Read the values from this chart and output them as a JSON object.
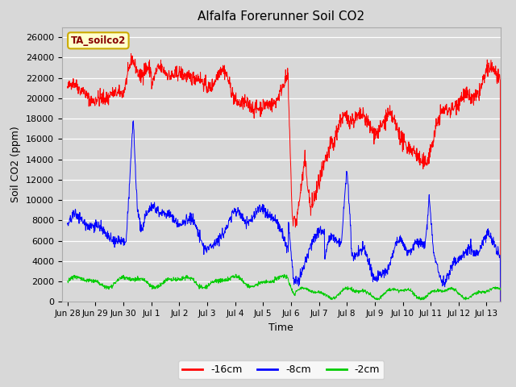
{
  "title": "Alfalfa Forerunner Soil CO2",
  "ylabel": "Soil CO2 (ppm)",
  "xlabel": "Time",
  "legend_label": "TA_soilco2",
  "series_labels": [
    "-16cm",
    "-8cm",
    "-2cm"
  ],
  "series_colors": [
    "#ff0000",
    "#0000ff",
    "#00cc00"
  ],
  "background_color": "#d8d8d8",
  "plot_bg_color": "#d8d8d8",
  "ylim": [
    0,
    27000
  ],
  "yticks": [
    0,
    2000,
    4000,
    6000,
    8000,
    10000,
    12000,
    14000,
    16000,
    18000,
    20000,
    22000,
    24000,
    26000
  ],
  "xtick_labels": [
    "Jun 28",
    "Jun 29",
    "Jun 30",
    "Jul 1",
    "Jul 2",
    "Jul 3",
    "Jul 4",
    "Jul 5",
    "Jul 6",
    "Jul 7",
    "Jul 8",
    "Jul 9",
    "Jul 10",
    "Jul 11",
    "Jul 12",
    "Jul 13"
  ],
  "annotation_box_color": "#ffffcc",
  "annotation_box_edge": "#ccaa00",
  "legend_line_color": "#ff0000",
  "legend_line_color2": "#0000ff",
  "legend_line_color3": "#00cc00"
}
